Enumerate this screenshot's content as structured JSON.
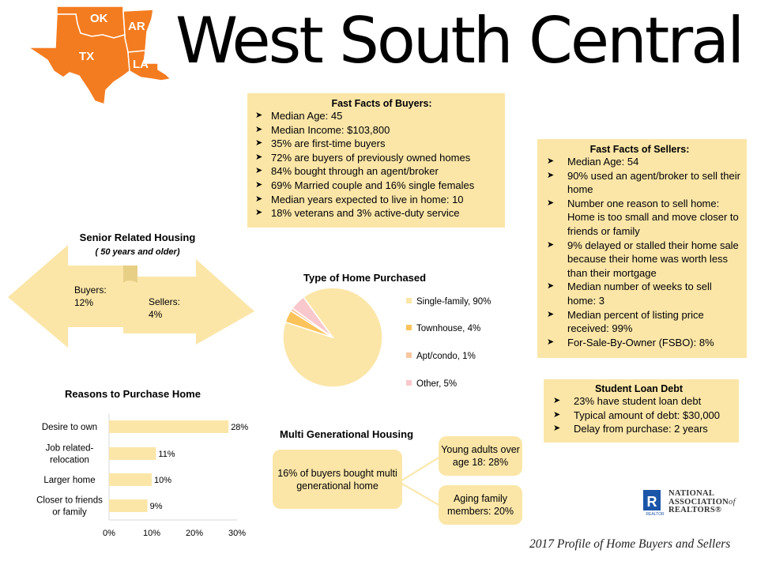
{
  "title": "West South Central",
  "map": {
    "states": [
      "OK",
      "AR",
      "TX",
      "LA"
    ],
    "color": "#f47c20"
  },
  "buyers_box": {
    "title": "Fast Facts of Buyers:",
    "items": [
      "Median Age: 45",
      "Median Income: $103,800",
      "35% are first-time buyers",
      "72% are buyers of previously owned homes",
      "84% bought through an agent/broker",
      "69% Married couple and 16% single females",
      "Median years expected to live in home: 10",
      "18% veterans and 3% active-duty  service"
    ]
  },
  "sellers_box": {
    "title": "Fast Facts of Sellers:",
    "items": [
      "Median Age: 54",
      "90% used an agent/broker to sell their home",
      "Number one reason to sell home: Home is too small and move closer to friends or family",
      "9% delayed or stalled their home sale because their home was worth less than their mortgage",
      "Median number of weeks to sell home: 3",
      "Median percent of listing price received: 99%",
      "For-Sale-By-Owner (FSBO): 8%"
    ]
  },
  "student_loan": {
    "title": "Student Loan Debt",
    "items": [
      "23% have student loan debt",
      "Typical amount of debt: $30,000",
      "Delay from purchase: 2 years"
    ]
  },
  "senior": {
    "title": "Senior Related Housing",
    "subtitle": "( 50 years and older)",
    "buyers_label": "Buyers:",
    "buyers_value": "12%",
    "sellers_label": "Sellers:",
    "sellers_value": "4%"
  },
  "multi": {
    "title": "Multi  Generational Housing",
    "main": "16% of buyers bought multi generational home",
    "young": "Young adults over age 18: 28%",
    "aging": "Aging family members: 20%"
  },
  "nar": {
    "line1": "NATIONAL",
    "line2": "ASSOCIATION",
    "line2_suffix": "of",
    "line3": "REALTORS",
    "mark": "R",
    "small": "REALTOR"
  },
  "footer": "2017 Profile of  Home Buyers and Sellers",
  "chart_data": [
    {
      "type": "pie",
      "title": "Type of Home Purchased",
      "labels": [
        "Single-family, 90%",
        "Townhouse, 4%",
        "Apt/condo, 1%",
        "Other, 5%"
      ],
      "values": [
        90,
        4,
        1,
        5
      ],
      "colors": [
        "#fbe6a8",
        "#fbc35a",
        "#f9c79f",
        "#f9c8cc"
      ],
      "legend": "right"
    },
    {
      "type": "bar",
      "orientation": "horizontal",
      "title": "Reasons to Purchase Home",
      "categories": [
        "Desire to own",
        "Job related-relocation",
        "Larger home",
        "Closer to friends or family"
      ],
      "category_lines": [
        [
          "Desire to own"
        ],
        [
          "Job related-",
          "relocation"
        ],
        [
          "Larger home"
        ],
        [
          "Closer to friends",
          "or family"
        ]
      ],
      "values": [
        28,
        11,
        10,
        9
      ],
      "value_labels": [
        "28%",
        "11%",
        "10%",
        "9%"
      ],
      "xlim": [
        0,
        30
      ],
      "ticks": [
        "0%",
        "10%",
        "20%",
        "30%"
      ],
      "color": "#fbe6a8"
    }
  ]
}
